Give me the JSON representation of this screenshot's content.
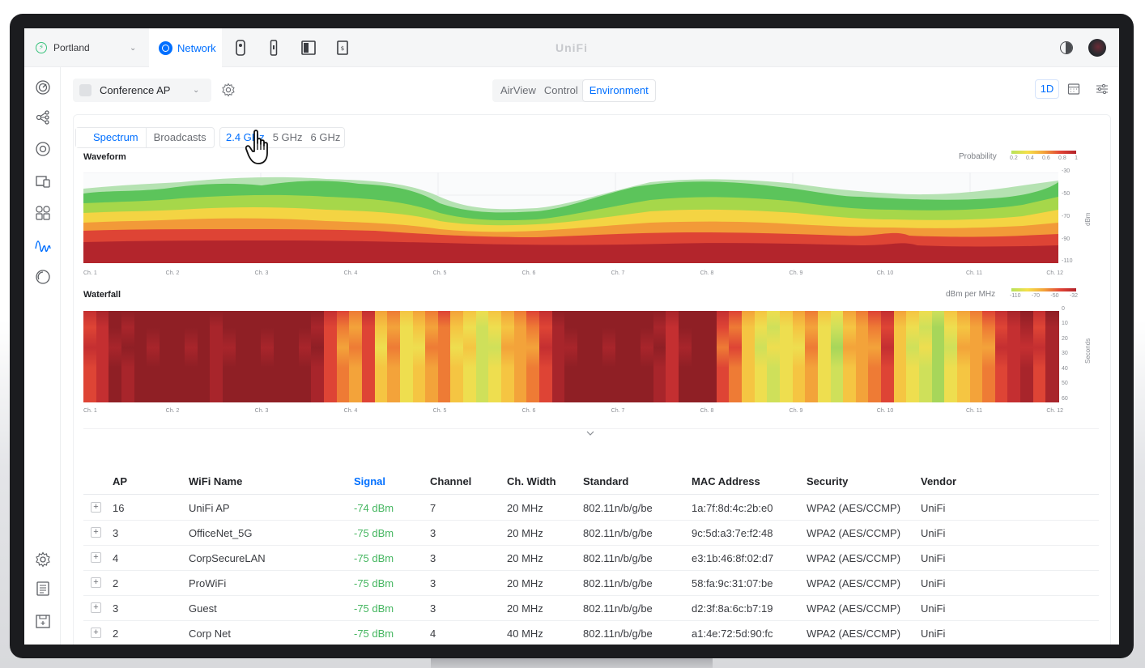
{
  "topbar": {
    "site_name": "Portland",
    "active_app": "Network",
    "brand": "UniFi"
  },
  "toolbar": {
    "device_name": "Conference AP",
    "view_tabs": [
      {
        "label": "AirView",
        "active": false
      },
      {
        "label": "Control",
        "active": false
      },
      {
        "label": "Environment",
        "active": true
      }
    ],
    "range_label": "1D"
  },
  "panel": {
    "tabs": [
      {
        "label": "Spectrum",
        "active": true
      },
      {
        "label": "Broadcasts",
        "active": false
      }
    ],
    "bands": [
      {
        "label": "2.4 GHz",
        "active": true
      },
      {
        "label": "5 GHz",
        "active": false
      },
      {
        "label": "6 GHz",
        "active": false
      }
    ],
    "waveform": {
      "title": "Waveform",
      "legend_label": "Probability",
      "legend_ticks": [
        "0.2",
        "0.4",
        "0.6",
        "0.8",
        "1"
      ],
      "y_ticks": [
        "-30",
        "-50",
        "-70",
        "-90",
        "-110"
      ],
      "y_unit": "dBm"
    },
    "waterfall": {
      "title": "Waterfall",
      "legend_label": "dBm per MHz",
      "legend_ticks": [
        "-110",
        "-70",
        "-50",
        "-32"
      ],
      "y_ticks": [
        "0",
        "10",
        "20",
        "30",
        "40",
        "50",
        "60"
      ],
      "y_unit": "Seconds"
    },
    "channels": [
      "Ch. 1",
      "Ch. 2",
      "Ch. 3",
      "Ch. 4",
      "Ch. 5",
      "Ch. 6",
      "Ch. 7",
      "Ch. 8",
      "Ch. 9",
      "Ch. 10",
      "Ch. 11",
      "Ch. 12"
    ]
  },
  "table": {
    "headers": {
      "ap": "AP",
      "wifi_name": "WiFi Name",
      "signal": "Signal",
      "channel": "Channel",
      "width": "Ch. Width",
      "standard": "Standard",
      "mac": "MAC Address",
      "security": "Security",
      "vendor": "Vendor"
    },
    "rows": [
      {
        "ap": "16",
        "wifi_name": "UniFi AP",
        "signal": "-74 dBm",
        "channel": "7",
        "width": "20 MHz",
        "standard": "802.11n/b/g/be",
        "mac": "1a:7f:8d:4c:2b:e0",
        "security": "WPA2 (AES/CCMP)",
        "vendor": "UniFi"
      },
      {
        "ap": "3",
        "wifi_name": "OfficeNet_5G",
        "signal": "-75 dBm",
        "channel": "3",
        "width": "20 MHz",
        "standard": "802.11n/b/g/be",
        "mac": "9c:5d:a3:7e:f2:48",
        "security": "WPA2 (AES/CCMP)",
        "vendor": "UniFi"
      },
      {
        "ap": "4",
        "wifi_name": "CorpSecureLAN",
        "signal": "-75 dBm",
        "channel": "3",
        "width": "20 MHz",
        "standard": "802.11n/b/g/be",
        "mac": "e3:1b:46:8f:02:d7",
        "security": "WPA2 (AES/CCMP)",
        "vendor": "UniFi"
      },
      {
        "ap": "2",
        "wifi_name": "ProWiFi",
        "signal": "-75 dBm",
        "channel": "3",
        "width": "20 MHz",
        "standard": "802.11n/b/g/be",
        "mac": "58:fa:9c:31:07:be",
        "security": "WPA2 (AES/CCMP)",
        "vendor": "UniFi"
      },
      {
        "ap": "3",
        "wifi_name": "Guest",
        "signal": "-75 dBm",
        "channel": "3",
        "width": "20 MHz",
        "standard": "802.11n/b/g/be",
        "mac": "d2:3f:8a:6c:b7:19",
        "security": "WPA2 (AES/CCMP)",
        "vendor": "UniFi"
      },
      {
        "ap": "2",
        "wifi_name": "Corp Net",
        "signal": "-75 dBm",
        "channel": "4",
        "width": "40 MHz",
        "standard": "802.11n/b/g/be",
        "mac": "a1:4e:72:5d:90:fc",
        "security": "WPA2 (AES/CCMP)",
        "vendor": "UniFi"
      }
    ]
  },
  "colors": {
    "accent": "#006fff",
    "signal_good": "#45b660"
  }
}
